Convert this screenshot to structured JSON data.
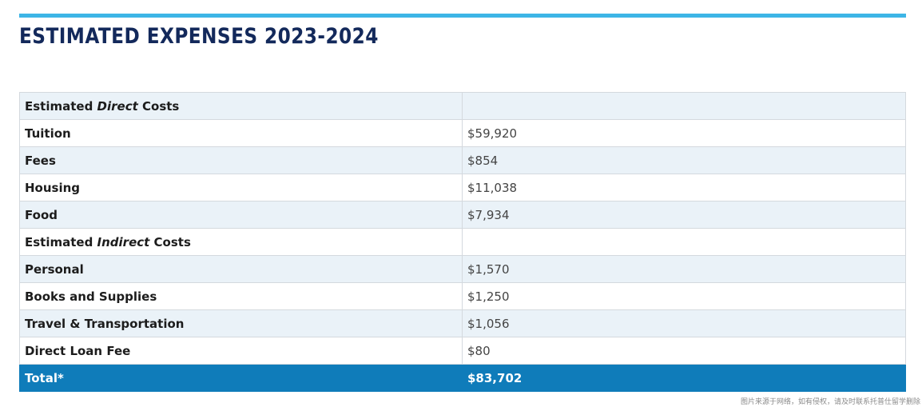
{
  "title": "ESTIMATED EXPENSES 2023-2024",
  "colors": {
    "title": "#13295b",
    "top_rule": "#3db5e6",
    "row_shade": "#eaf2f8",
    "total_row": "#0f7cba"
  },
  "table": {
    "direct_header": {
      "prefix": "Estimated ",
      "emphasis": "Direct",
      "suffix": " Costs",
      "value": ""
    },
    "direct_rows": [
      {
        "label": "Tuition",
        "value": "$59,920"
      },
      {
        "label": "Fees",
        "value": "$854"
      },
      {
        "label": "Housing",
        "value": "$11,038"
      },
      {
        "label": "Food",
        "value": "$7,934"
      }
    ],
    "indirect_header": {
      "prefix": "Estimated ",
      "emphasis": "Indirect",
      "suffix": " Costs",
      "value": ""
    },
    "indirect_rows": [
      {
        "label": "Personal",
        "value": "$1,570"
      },
      {
        "label": "Books and Supplies",
        "value": "$1,250"
      },
      {
        "label": "Travel & Transportation",
        "value": "$1,056"
      },
      {
        "label": "Direct Loan Fee",
        "value": "$80"
      }
    ],
    "total": {
      "label": "Total*",
      "value": "$83,702"
    }
  },
  "watermark": "图片来源于网络，如有侵权，请及时联系托普仕留学删除"
}
